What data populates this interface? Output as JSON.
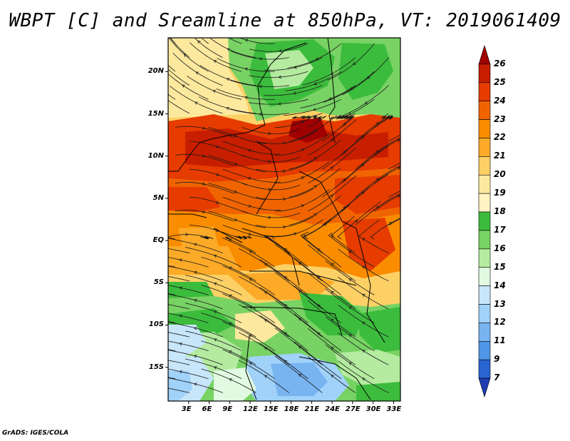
{
  "title": "WBPT [C] and Sreamline at 850hPa, VT: 2019061409",
  "credit": "GrADS: IGES/COLA",
  "map": {
    "variable": "Wet-bulb potential temperature",
    "units": "C",
    "level": "850hPa",
    "valid_time": "2019061409",
    "lon_range": [
      0,
      34
    ],
    "lat_range": [
      -19,
      24
    ],
    "lat_ticks": [
      {
        "value": 20,
        "label": "20N"
      },
      {
        "value": 15,
        "label": "15N"
      },
      {
        "value": 10,
        "label": "10N"
      },
      {
        "value": 5,
        "label": "5N"
      },
      {
        "value": 0,
        "label": "EQ"
      },
      {
        "value": -5,
        "label": "5S"
      },
      {
        "value": -10,
        "label": "10S"
      },
      {
        "value": -15,
        "label": "15S"
      }
    ],
    "lon_ticks": [
      {
        "value": 3,
        "label": "3E"
      },
      {
        "value": 6,
        "label": "6E"
      },
      {
        "value": 9,
        "label": "9E"
      },
      {
        "value": 12,
        "label": "12E"
      },
      {
        "value": 15,
        "label": "15E"
      },
      {
        "value": 18,
        "label": "18E"
      },
      {
        "value": 21,
        "label": "21E"
      },
      {
        "value": 24,
        "label": "24E"
      },
      {
        "value": 27,
        "label": "27E"
      },
      {
        "value": 30,
        "label": "30E"
      },
      {
        "value": 33,
        "label": "33E"
      }
    ]
  },
  "colorbar": {
    "levels": [
      "26",
      "25",
      "24",
      "23",
      "22",
      "21",
      "20",
      "19",
      "18",
      "17",
      "16",
      "15",
      "14",
      "13",
      "12",
      "11",
      "9",
      "7"
    ],
    "colors": [
      "#a00000",
      "#c81e00",
      "#e63c00",
      "#f06400",
      "#fa8c00",
      "#fcaa28",
      "#fdd066",
      "#fde99e",
      "#fff4c2",
      "#3cbc3c",
      "#78d264",
      "#b4eba0",
      "#e1fae1",
      "#c8e6fa",
      "#a0d2fa",
      "#78b4f0",
      "#5096e6",
      "#2864d2",
      "#1e3cb4"
    ]
  }
}
